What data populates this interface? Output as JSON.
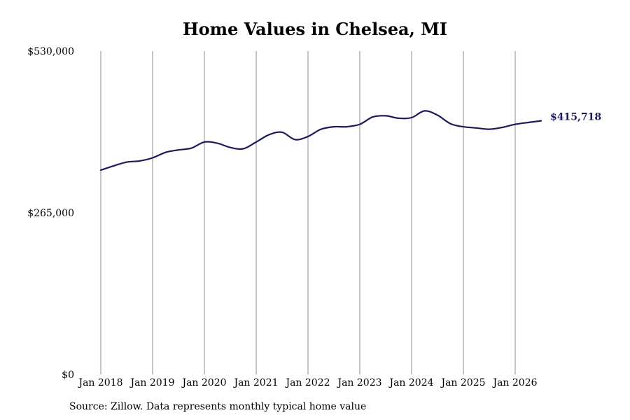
{
  "chart_data": {
    "type": "line",
    "title": "Home Values in Chelsea, MI",
    "source_note": "Source: Zillow. Data represents monthly typical home value",
    "end_value_label": "$415,718",
    "ylim": [
      0,
      530000
    ],
    "y_ticks": [
      0,
      265000,
      530000
    ],
    "y_tick_labels": [
      "$0",
      "$265,000",
      "$530,000"
    ],
    "x_tick_labels": [
      "Jan 2018",
      "Jan 2019",
      "Jan 2020",
      "Jan 2021",
      "Jan 2022",
      "Jan 2023",
      "Jan 2024",
      "Jan 2025",
      "Jan 2026"
    ],
    "x_range": [
      "2018-01",
      "2026-07"
    ],
    "grid": "vertical",
    "line_color": "#1a1a5e",
    "series": [
      {
        "x": [
          "2018-01",
          "2018-04",
          "2018-07",
          "2018-10",
          "2019-01",
          "2019-04",
          "2019-07",
          "2019-10",
          "2020-01",
          "2020-04",
          "2020-07",
          "2020-10",
          "2021-01",
          "2021-04",
          "2021-07",
          "2021-10",
          "2022-01",
          "2022-04",
          "2022-07",
          "2022-10",
          "2023-01",
          "2023-04",
          "2023-07",
          "2023-10",
          "2024-01",
          "2024-04",
          "2024-07",
          "2024-10",
          "2025-01",
          "2025-04",
          "2025-07",
          "2025-10",
          "2026-01",
          "2026-04",
          "2026-07"
        ],
        "values": [
          335000,
          342000,
          348000,
          350000,
          355000,
          364000,
          368000,
          371000,
          381000,
          379000,
          372000,
          370000,
          381000,
          393000,
          397000,
          385000,
          390000,
          402000,
          406000,
          406000,
          410000,
          422000,
          424000,
          420000,
          421000,
          432000,
          425000,
          411000,
          406000,
          404000,
          402000,
          405000,
          410000,
          413000,
          415718
        ]
      }
    ]
  }
}
